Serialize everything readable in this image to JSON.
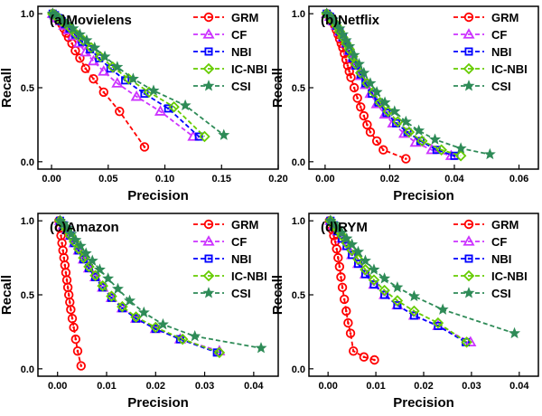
{
  "series_styles": [
    {
      "name": "GRM",
      "color": "#ff0000",
      "marker": "circle-icon"
    },
    {
      "name": "CF",
      "color": "#cc33ff",
      "marker": "triangle-icon"
    },
    {
      "name": "NBI",
      "color": "#0000ff",
      "marker": "square-icon"
    },
    {
      "name": "IC-NBI",
      "color": "#66cc00",
      "marker": "diamond-icon"
    },
    {
      "name": "CSI",
      "color": "#2e8b57",
      "marker": "star-icon"
    }
  ],
  "chart_data": [
    {
      "type": "line",
      "title": "(a)Movielens",
      "xlabel": "Precision",
      "ylabel": "Recall",
      "xlim": [
        -0.012,
        0.2
      ],
      "ylim": [
        -0.05,
        1.05
      ],
      "xticks": [
        0.0,
        0.05,
        0.1,
        0.15,
        0.2
      ],
      "xtick_labels": [
        "0.00",
        "0.05",
        "0.10",
        "0.15",
        "0.20"
      ],
      "yticks": [
        0.0,
        0.5,
        1.0
      ],
      "ytick_labels": [
        "0.0",
        "0.5",
        "1.0"
      ],
      "legend": "top-right",
      "series": [
        {
          "name": "GRM",
          "x": [
            0.001,
            0.003,
            0.005,
            0.007,
            0.009,
            0.011,
            0.013,
            0.015,
            0.018,
            0.021,
            0.025,
            0.03,
            0.037,
            0.046,
            0.06,
            0.082
          ],
          "y": [
            1.0,
            0.99,
            0.97,
            0.95,
            0.93,
            0.9,
            0.87,
            0.84,
            0.8,
            0.75,
            0.7,
            0.63,
            0.56,
            0.47,
            0.34,
            0.1
          ]
        },
        {
          "name": "CF",
          "x": [
            0.001,
            0.003,
            0.005,
            0.008,
            0.011,
            0.015,
            0.019,
            0.024,
            0.03,
            0.037,
            0.046,
            0.058,
            0.075,
            0.096,
            0.125
          ],
          "y": [
            1.0,
            0.99,
            0.97,
            0.95,
            0.92,
            0.89,
            0.85,
            0.8,
            0.74,
            0.68,
            0.61,
            0.53,
            0.44,
            0.34,
            0.17
          ]
        },
        {
          "name": "NBI",
          "x": [
            0.001,
            0.003,
            0.006,
            0.009,
            0.012,
            0.016,
            0.021,
            0.027,
            0.034,
            0.042,
            0.052,
            0.065,
            0.082,
            0.103,
            0.13
          ],
          "y": [
            1.0,
            0.99,
            0.97,
            0.95,
            0.93,
            0.9,
            0.86,
            0.81,
            0.76,
            0.7,
            0.63,
            0.55,
            0.46,
            0.36,
            0.17
          ]
        },
        {
          "name": "IC-NBI",
          "x": [
            0.001,
            0.003,
            0.006,
            0.009,
            0.013,
            0.017,
            0.022,
            0.028,
            0.035,
            0.043,
            0.054,
            0.068,
            0.086,
            0.108,
            0.135
          ],
          "y": [
            1.0,
            0.99,
            0.97,
            0.95,
            0.93,
            0.9,
            0.86,
            0.82,
            0.77,
            0.71,
            0.64,
            0.56,
            0.47,
            0.37,
            0.17
          ]
        },
        {
          "name": "CSI",
          "x": [
            0.001,
            0.003,
            0.006,
            0.01,
            0.014,
            0.019,
            0.025,
            0.031,
            0.038,
            0.047,
            0.058,
            0.072,
            0.09,
            0.118,
            0.152
          ],
          "y": [
            1.0,
            0.99,
            0.97,
            0.95,
            0.93,
            0.9,
            0.86,
            0.82,
            0.77,
            0.71,
            0.64,
            0.56,
            0.48,
            0.38,
            0.18
          ]
        }
      ]
    },
    {
      "type": "line",
      "title": "(b)Netflix",
      "xlabel": "Precision",
      "ylabel": "Recall",
      "xlim": [
        -0.005,
        0.066
      ],
      "ylim": [
        -0.05,
        1.05
      ],
      "xticks": [
        0.0,
        0.02,
        0.04,
        0.06
      ],
      "xtick_labels": [
        "0.00",
        "0.02",
        "0.04",
        "0.06"
      ],
      "yticks": [
        0.0,
        0.5,
        1.0
      ],
      "ytick_labels": [
        "0.0",
        "0.5",
        "1.0"
      ],
      "legend": "top-right",
      "series": [
        {
          "name": "GRM",
          "x": [
            0.0005,
            0.001,
            0.0015,
            0.002,
            0.0025,
            0.003,
            0.0035,
            0.004,
            0.0045,
            0.005,
            0.0055,
            0.006,
            0.0065,
            0.007,
            0.0075,
            0.008,
            0.009,
            0.01,
            0.011,
            0.012,
            0.013,
            0.014,
            0.016,
            0.018,
            0.025
          ],
          "y": [
            1.0,
            0.99,
            0.98,
            0.96,
            0.94,
            0.92,
            0.89,
            0.86,
            0.83,
            0.8,
            0.77,
            0.73,
            0.69,
            0.65,
            0.61,
            0.57,
            0.5,
            0.43,
            0.37,
            0.31,
            0.25,
            0.2,
            0.14,
            0.08,
            0.02
          ]
        },
        {
          "name": "CF",
          "x": [
            0.0005,
            0.0015,
            0.0025,
            0.0035,
            0.0045,
            0.0055,
            0.0065,
            0.0075,
            0.0085,
            0.0095,
            0.011,
            0.0125,
            0.014,
            0.016,
            0.0185,
            0.021,
            0.0245,
            0.028,
            0.033,
            0.039
          ],
          "y": [
            1.0,
            0.98,
            0.95,
            0.92,
            0.88,
            0.84,
            0.8,
            0.75,
            0.7,
            0.65,
            0.58,
            0.52,
            0.46,
            0.39,
            0.32,
            0.26,
            0.19,
            0.13,
            0.08,
            0.04
          ]
        },
        {
          "name": "NBI",
          "x": [
            0.0005,
            0.0015,
            0.0025,
            0.0035,
            0.0045,
            0.0055,
            0.0065,
            0.0075,
            0.0085,
            0.0095,
            0.011,
            0.0125,
            0.0145,
            0.0165,
            0.019,
            0.022,
            0.0255,
            0.0295,
            0.0345,
            0.04
          ],
          "y": [
            1.0,
            0.98,
            0.95,
            0.92,
            0.88,
            0.84,
            0.8,
            0.75,
            0.7,
            0.65,
            0.59,
            0.53,
            0.46,
            0.4,
            0.33,
            0.26,
            0.2,
            0.14,
            0.08,
            0.04
          ]
        },
        {
          "name": "IC-NBI",
          "x": [
            0.0005,
            0.0015,
            0.0025,
            0.0035,
            0.0045,
            0.0055,
            0.0065,
            0.0075,
            0.0085,
            0.0095,
            0.011,
            0.013,
            0.015,
            0.017,
            0.0195,
            0.0225,
            0.026,
            0.03,
            0.036,
            0.042
          ],
          "y": [
            1.0,
            0.98,
            0.95,
            0.92,
            0.88,
            0.84,
            0.8,
            0.76,
            0.71,
            0.66,
            0.6,
            0.53,
            0.47,
            0.4,
            0.34,
            0.27,
            0.2,
            0.14,
            0.08,
            0.04
          ]
        },
        {
          "name": "CSI",
          "x": [
            0.0005,
            0.0015,
            0.0025,
            0.0035,
            0.0045,
            0.0055,
            0.0065,
            0.0075,
            0.009,
            0.0105,
            0.012,
            0.014,
            0.016,
            0.0185,
            0.0215,
            0.025,
            0.029,
            0.034,
            0.042,
            0.051
          ],
          "y": [
            1.0,
            0.98,
            0.96,
            0.93,
            0.9,
            0.86,
            0.82,
            0.78,
            0.72,
            0.66,
            0.6,
            0.53,
            0.47,
            0.4,
            0.34,
            0.27,
            0.21,
            0.15,
            0.09,
            0.05
          ]
        }
      ]
    },
    {
      "type": "line",
      "title": "(c)Amazon",
      "xlabel": "Precision",
      "ylabel": "Recall",
      "xlim": [
        -0.004,
        0.045
      ],
      "ylim": [
        -0.05,
        1.05
      ],
      "xticks": [
        0.0,
        0.01,
        0.02,
        0.03,
        0.04
      ],
      "xtick_labels": [
        "0.00",
        "0.01",
        "0.02",
        "0.03",
        "0.04"
      ],
      "yticks": [
        0.0,
        0.5,
        1.0
      ],
      "ytick_labels": [
        "0.0",
        "0.5",
        "1.0"
      ],
      "legend": "top-right",
      "series": [
        {
          "name": "GRM",
          "x": [
            0.0003,
            0.0005,
            0.0007,
            0.0009,
            0.0011,
            0.0013,
            0.0015,
            0.0017,
            0.0019,
            0.0021,
            0.0023,
            0.0025,
            0.0027,
            0.003,
            0.0033,
            0.0037,
            0.0041,
            0.0048
          ],
          "y": [
            1.0,
            0.95,
            0.9,
            0.85,
            0.8,
            0.75,
            0.7,
            0.65,
            0.6,
            0.55,
            0.5,
            0.45,
            0.4,
            0.34,
            0.28,
            0.2,
            0.12,
            0.02
          ]
        },
        {
          "name": "CF",
          "x": [
            0.0005,
            0.0012,
            0.0019,
            0.0026,
            0.0034,
            0.0043,
            0.0053,
            0.0064,
            0.0077,
            0.0092,
            0.011,
            0.0132,
            0.016,
            0.02,
            0.025,
            0.033
          ],
          "y": [
            1.0,
            0.97,
            0.94,
            0.9,
            0.85,
            0.8,
            0.74,
            0.68,
            0.62,
            0.55,
            0.48,
            0.41,
            0.34,
            0.27,
            0.2,
            0.12
          ]
        },
        {
          "name": "NBI",
          "x": [
            0.0005,
            0.0012,
            0.0019,
            0.0026,
            0.0034,
            0.0043,
            0.0053,
            0.0064,
            0.0077,
            0.0092,
            0.011,
            0.0132,
            0.016,
            0.02,
            0.025,
            0.0325
          ],
          "y": [
            1.0,
            0.97,
            0.94,
            0.9,
            0.85,
            0.8,
            0.74,
            0.68,
            0.62,
            0.55,
            0.48,
            0.41,
            0.34,
            0.27,
            0.2,
            0.11
          ]
        },
        {
          "name": "IC-NBI",
          "x": [
            0.0005,
            0.0012,
            0.0019,
            0.0026,
            0.0034,
            0.0043,
            0.0053,
            0.0064,
            0.0077,
            0.0092,
            0.011,
            0.0132,
            0.016,
            0.02,
            0.0255,
            0.033
          ],
          "y": [
            1.0,
            0.97,
            0.94,
            0.9,
            0.86,
            0.81,
            0.75,
            0.69,
            0.63,
            0.56,
            0.49,
            0.42,
            0.35,
            0.28,
            0.2,
            0.11
          ]
        },
        {
          "name": "CSI",
          "x": [
            0.0005,
            0.0012,
            0.002,
            0.0028,
            0.0037,
            0.0047,
            0.0058,
            0.0071,
            0.0086,
            0.0103,
            0.0123,
            0.0147,
            0.0176,
            0.0215,
            0.028,
            0.0415
          ],
          "y": [
            1.0,
            0.98,
            0.95,
            0.91,
            0.87,
            0.83,
            0.78,
            0.73,
            0.67,
            0.61,
            0.54,
            0.46,
            0.38,
            0.3,
            0.22,
            0.14
          ]
        }
      ]
    },
    {
      "type": "line",
      "title": "(d)RYM",
      "xlabel": "Precision",
      "ylabel": "Recall",
      "xlim": [
        -0.004,
        0.044
      ],
      "ylim": [
        -0.05,
        1.05
      ],
      "xticks": [
        0.0,
        0.01,
        0.02,
        0.03,
        0.04
      ],
      "xtick_labels": [
        "0.00",
        "0.01",
        "0.02",
        "0.03",
        "0.04"
      ],
      "yticks": [
        0.0,
        0.5,
        1.0
      ],
      "ytick_labels": [
        "0.0",
        "0.5",
        "1.0"
      ],
      "legend": "top-right",
      "series": [
        {
          "name": "GRM",
          "x": [
            0.0003,
            0.0006,
            0.0009,
            0.0012,
            0.0015,
            0.0018,
            0.0021,
            0.0024,
            0.0027,
            0.003,
            0.0034,
            0.0038,
            0.0042,
            0.0047,
            0.0053,
            0.0075,
            0.0097
          ],
          "y": [
            1.0,
            0.97,
            0.94,
            0.9,
            0.86,
            0.81,
            0.75,
            0.69,
            0.62,
            0.55,
            0.47,
            0.39,
            0.31,
            0.24,
            0.12,
            0.08,
            0.06
          ]
        },
        {
          "name": "CF",
          "x": [
            0.0005,
            0.0012,
            0.002,
            0.0029,
            0.0039,
            0.005,
            0.0063,
            0.0078,
            0.0096,
            0.0118,
            0.0145,
            0.018,
            0.023,
            0.0298
          ],
          "y": [
            1.0,
            0.97,
            0.93,
            0.88,
            0.83,
            0.77,
            0.71,
            0.64,
            0.57,
            0.5,
            0.43,
            0.36,
            0.29,
            0.18
          ]
        },
        {
          "name": "NBI",
          "x": [
            0.0005,
            0.0012,
            0.002,
            0.0029,
            0.0039,
            0.005,
            0.0063,
            0.0078,
            0.0096,
            0.0118,
            0.0145,
            0.018,
            0.023,
            0.0288
          ],
          "y": [
            1.0,
            0.97,
            0.93,
            0.88,
            0.83,
            0.77,
            0.71,
            0.64,
            0.57,
            0.5,
            0.43,
            0.36,
            0.29,
            0.18
          ]
        },
        {
          "name": "IC-NBI",
          "x": [
            0.0005,
            0.0012,
            0.002,
            0.0029,
            0.0039,
            0.005,
            0.0063,
            0.0078,
            0.0096,
            0.0118,
            0.0145,
            0.018,
            0.023,
            0.029
          ],
          "y": [
            1.0,
            0.97,
            0.94,
            0.9,
            0.85,
            0.8,
            0.74,
            0.67,
            0.6,
            0.53,
            0.46,
            0.39,
            0.31,
            0.18
          ]
        },
        {
          "name": "CSI",
          "x": [
            0.0005,
            0.0012,
            0.002,
            0.0029,
            0.0039,
            0.005,
            0.0063,
            0.0078,
            0.0096,
            0.0118,
            0.0145,
            0.018,
            0.024,
            0.039
          ],
          "y": [
            1.0,
            0.98,
            0.95,
            0.92,
            0.88,
            0.84,
            0.79,
            0.73,
            0.67,
            0.61,
            0.55,
            0.49,
            0.4,
            0.24
          ]
        }
      ]
    }
  ]
}
